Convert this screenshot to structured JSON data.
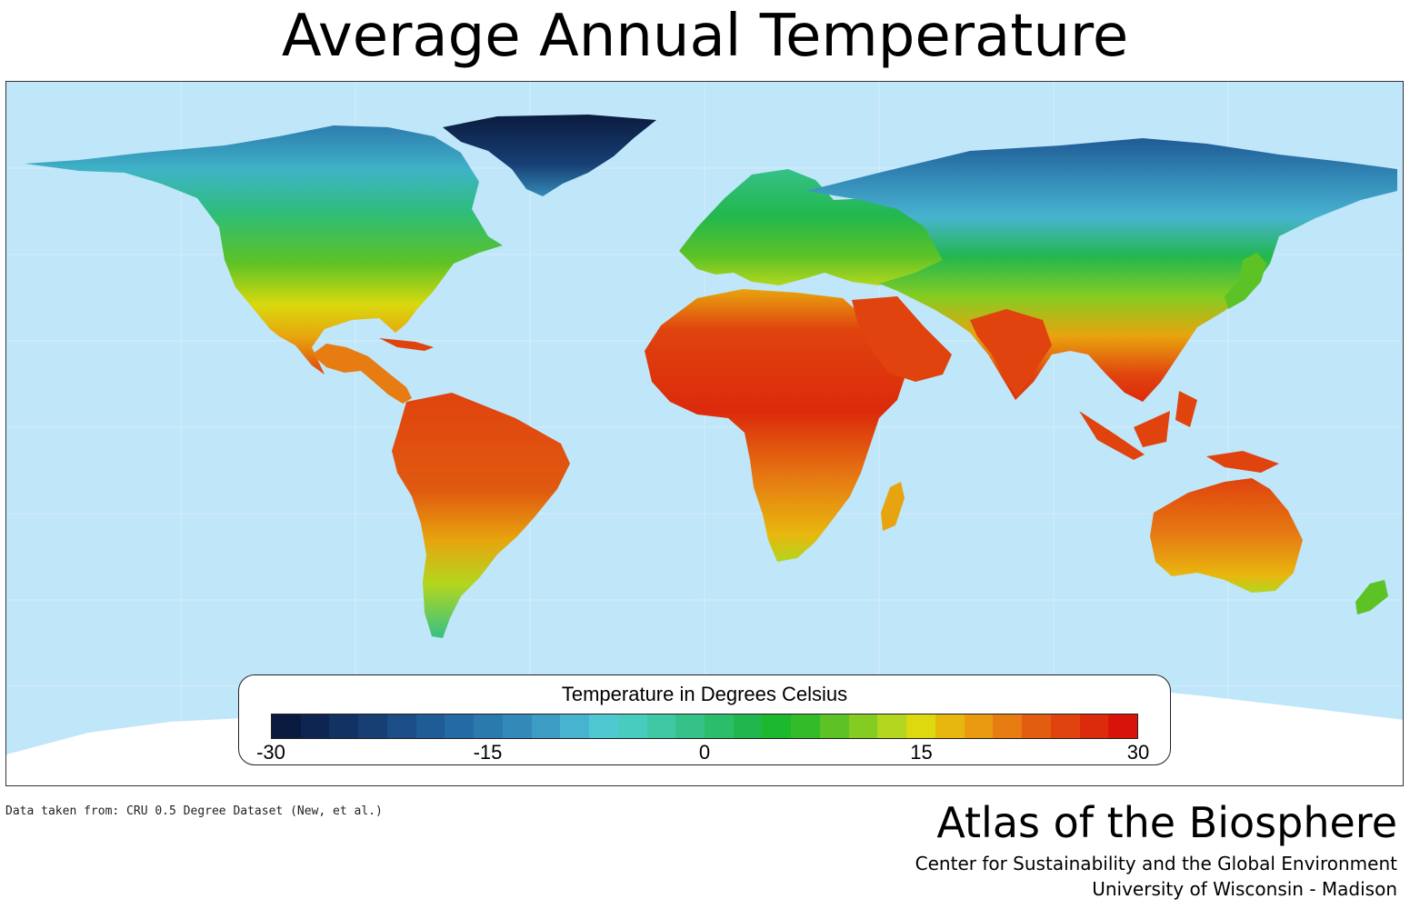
{
  "title": "Average Annual Temperature",
  "legend": {
    "title": "Temperature in Degrees Celsius",
    "ticks": [
      "-30",
      "-15",
      "0",
      "15",
      "30"
    ],
    "min": -30,
    "max": 30,
    "colors": [
      "#0b1b3f",
      "#0e2552",
      "#123263",
      "#173f74",
      "#1b4d86",
      "#1f5b95",
      "#246aa4",
      "#2b7aae",
      "#3389b7",
      "#3d9cc3",
      "#48b3cf",
      "#4fc8d2",
      "#48ccc0",
      "#40c7a4",
      "#35c187",
      "#2cbd6b",
      "#22b74e",
      "#1cb82e",
      "#34bb2a",
      "#5cc226",
      "#85cc22",
      "#b3d61e",
      "#ddd90e",
      "#e8b70e",
      "#ea9a10",
      "#e67c12",
      "#e35d10",
      "#e0430e",
      "#dc2a0c",
      "#d8140a"
    ]
  },
  "map": {
    "ocean_color": "#bfe6f9",
    "ice_color": "#ffffff"
  },
  "source": "Data taken from: CRU 0.5 Degree Dataset (New, et al.)",
  "branding": {
    "atlas": "Atlas of the Biosphere",
    "line1": "Center for Sustainability and the Global Environment",
    "line2": "University of Wisconsin - Madison"
  }
}
